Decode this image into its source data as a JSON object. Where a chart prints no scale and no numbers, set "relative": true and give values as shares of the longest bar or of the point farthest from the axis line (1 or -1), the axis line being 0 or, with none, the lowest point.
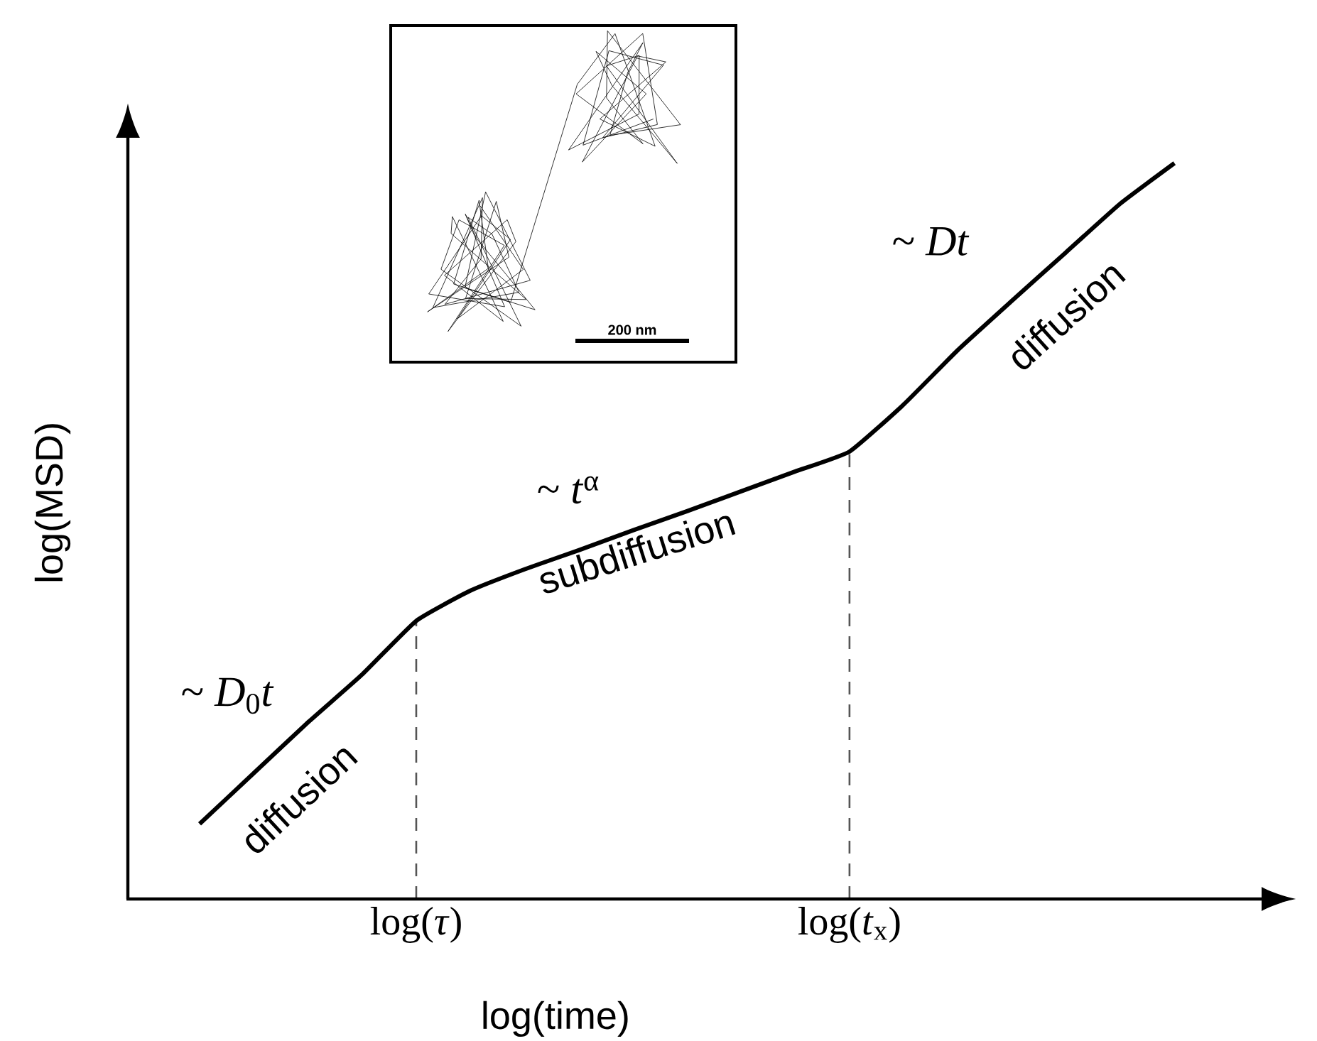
{
  "chart_data": {
    "type": "line",
    "relative": true,
    "xlabel": "log(time)",
    "ylabel": "log(MSD)",
    "categories": [
      null,
      null,
      null,
      null,
      "log(*τ*)",
      null,
      null,
      null,
      null,
      null,
      null,
      null,
      "log(*t*$_{x}$)",
      null,
      null,
      null,
      null,
      null,
      null
    ],
    "series": [
      {
        "color": "#000000",
        "values": [
          0.102,
          0.171,
          0.24,
          0.305,
          0.378,
          0.419,
          0.448,
          0.474,
          0.501,
          0.527,
          0.554,
          0.581,
          0.608,
          0.672,
          0.746,
          0.813,
          0.879,
          0.945,
          1
        ]
      }
    ],
    "tick_labels": "x",
    "ref_lines": [
      {
        "axis": "x",
        "value": "log(*τ*)",
        "line_style": "dashed",
        "color": "#555555"
      },
      {
        "axis": "x",
        "value": "log(*t*$_{x}$)",
        "line_style": "dashed",
        "color": "#555555"
      }
    ],
    "annotations": [
      "~ *D*$_{0}$*t*",
      "diffusion",
      "~ *t*$^{α}$",
      "subdiffusion",
      "~ *Dt*",
      "diffusion",
      "200 nm"
    ]
  }
}
